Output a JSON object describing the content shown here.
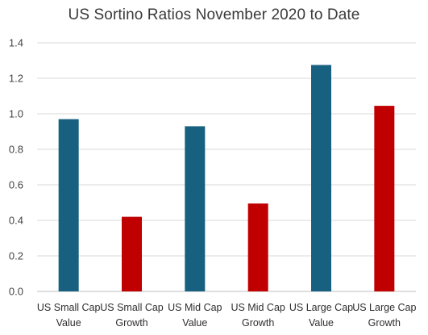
{
  "chart_data": {
    "type": "bar",
    "title": "US Sortino Ratios November 2020 to Date",
    "categories": [
      [
        "US Small Cap",
        "Value"
      ],
      [
        "US Small Cap",
        "Growth"
      ],
      [
        "US Mid Cap",
        "Value"
      ],
      [
        "US Mid Cap",
        "Growth"
      ],
      [
        "US Large Cap",
        "Value"
      ],
      [
        "US Large Cap",
        "Growth"
      ]
    ],
    "values": [
      0.97,
      0.42,
      0.93,
      0.495,
      1.275,
      1.045
    ],
    "bar_colors": [
      "#17607f",
      "#c00000",
      "#17607f",
      "#c00000",
      "#17607f",
      "#c00000"
    ],
    "ylim": [
      0,
      1.4
    ],
    "yticks": [
      "0.0",
      "0.2",
      "0.4",
      "0.6",
      "0.8",
      "1.0",
      "1.2",
      "1.4"
    ],
    "xlabel": "",
    "ylabel": "",
    "grid": true,
    "legend": "none"
  }
}
